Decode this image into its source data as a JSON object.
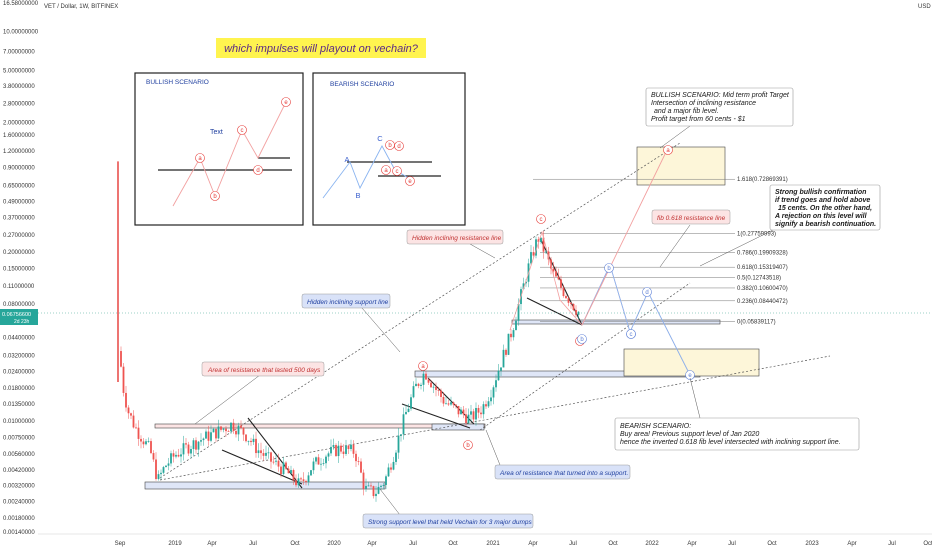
{
  "chart_data": {
    "type": "candlestick",
    "symbol_line": "VET / Dollar, 1W, BITFINEX",
    "currency": "USD",
    "scale": "log",
    "title": "which impulses will playout on vechain?",
    "price_axis_labels": [
      "16.58000000",
      "10.00000000",
      "7.00000000",
      "5.00000000",
      "3.80000000",
      "2.80000000",
      "2.00000000",
      "1.60000000",
      "1.20000000",
      "0.90000000",
      "0.65000000",
      "0.49000000",
      "0.37000000",
      "0.27000000",
      "0.20000000",
      "0.15000000",
      "0.11000000",
      "0.08000000",
      "0.06000000",
      "0.04400000",
      "0.03200000",
      "0.02400000",
      "0.01800000",
      "0.01350000",
      "0.01000000",
      "0.00750000",
      "0.00560000",
      "0.00420000",
      "0.00320000",
      "0.00240000",
      "0.00180000",
      "0.00140000"
    ],
    "price_axis_values": [
      16.58,
      10,
      7,
      5,
      3.8,
      2.8,
      2.0,
      1.6,
      1.2,
      0.9,
      0.65,
      0.49,
      0.37,
      0.27,
      0.2,
      0.15,
      0.11,
      0.08,
      0.06,
      0.044,
      0.032,
      0.024,
      0.018,
      0.0135,
      0.01,
      0.0075,
      0.0056,
      0.0042,
      0.0032,
      0.0024,
      0.0018,
      0.0014
    ],
    "time_axis_labels": [
      "Sep",
      "2019",
      "Apr",
      "Jul",
      "Oct",
      "2020",
      "Apr",
      "Jul",
      "Oct",
      "2021",
      "Apr",
      "Jul",
      "Oct",
      "2022",
      "Apr",
      "Jul",
      "Oct",
      "2023",
      "Apr",
      "Jul",
      "Oct"
    ],
    "current_price": "0.06756600",
    "current_price_sub": "2d 23h",
    "fib_levels": [
      {
        "label": "1.618(0.72869391)",
        "value": 0.7287
      },
      {
        "label": "1(0.27759993)",
        "value": 0.2776
      },
      {
        "label": "0.786(0.19909328)",
        "value": 0.1991
      },
      {
        "label": "0.618(0.15319407)",
        "value": 0.1532
      },
      {
        "label": "0.5(0.12743518)",
        "value": 0.1274
      },
      {
        "label": "0.382(0.10600470)",
        "value": 0.106
      },
      {
        "label": "0.236(0.08440472)",
        "value": 0.0844
      },
      {
        "label": "0(0.05839117)",
        "value": 0.0584
      }
    ],
    "annotations": {
      "hidden_resistance": "Hidden inclining resistance line",
      "hidden_support": "Hidden inclining support line",
      "area_resistance_500": "Area of resistance that lasted 500 days",
      "area_turned_support": "Area of resistance that turned into a support.",
      "strong_support": "Strong support level that held Vechain for 3 major dumps",
      "fib_resistance": "fib 0.618 resistance line",
      "bullish_scenario_lines": [
        "BULLISH SCENARIO: Mid term profit Target",
        "Intersection of inclining resistance",
        "and a major fib level.",
        "Profit target from 60 cents - $1"
      ],
      "strong_bullish_lines": [
        "Strong bullish confirmation",
        "if trend goes and hold above",
        "15 cents. On the other hand,",
        "A rejection on this level will",
        "signify a bearish continuation."
      ],
      "bearish_scenario_lines": [
        "BEARISH SCENARIO:",
        "Buy area! Previous support level of Jan 2020",
        "hence the inverted 0.618 fib level intersected with inclining support line."
      ]
    },
    "boxes": {
      "bullish_title": "BULLISH SCENARIO",
      "bearish_title": "BEARISH SCENARIO",
      "bull_text": "Text",
      "bull_wave_labels": [
        "a",
        "b",
        "c",
        "d",
        "e"
      ],
      "bear_wave_labels": [
        "A",
        "B",
        "C",
        "b",
        "d",
        "a",
        "c",
        "e"
      ]
    },
    "chart_wave_labels": [
      "a",
      "b",
      "c",
      "d",
      "b",
      "c",
      "d",
      "e",
      "a",
      "b",
      "c"
    ]
  }
}
